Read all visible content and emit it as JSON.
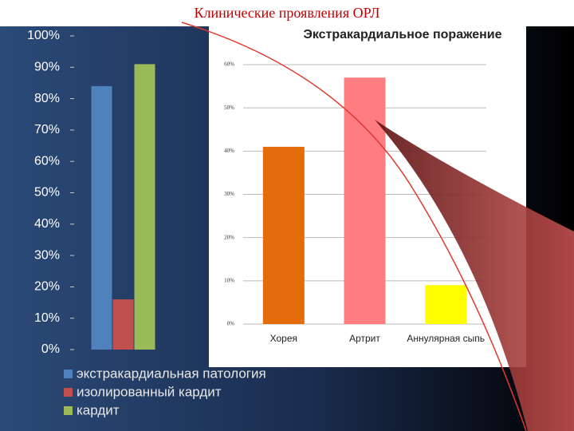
{
  "title": "Клинические проявления ОРЛ",
  "chart_data": [
    {
      "type": "bar",
      "categories": [
        null
      ],
      "series": [
        {
          "name": "экстракардиальная патология",
          "color": "#4f81bd",
          "values": [
            84
          ]
        },
        {
          "name": "изолированный кардит",
          "color": "#c0504d",
          "values": [
            16
          ]
        },
        {
          "name": "кардит",
          "color": "#9bbb59",
          "values": [
            91
          ]
        }
      ],
      "ylim": [
        0,
        100
      ],
      "yticks": [
        {
          "value": 0,
          "label": "0%"
        },
        {
          "value": 10,
          "label": "10%"
        },
        {
          "value": 20,
          "label": "20%"
        },
        {
          "value": 30,
          "label": "30%"
        },
        {
          "value": 40,
          "label": "40%"
        },
        {
          "value": 50,
          "label": "50%"
        },
        {
          "value": 60,
          "label": "60%"
        },
        {
          "value": 70,
          "label": "70%"
        },
        {
          "value": 80,
          "label": "80%"
        },
        {
          "value": 90,
          "label": "90%"
        },
        {
          "value": 100,
          "label": "100%"
        }
      ],
      "grid": false,
      "legend": "bottom"
    },
    {
      "type": "bar",
      "title": "Экстракардиальное поражение",
      "categories": [
        "Хорея",
        "Артрит",
        "Аннулярная сыпь"
      ],
      "values": [
        41,
        57,
        9
      ],
      "colors": [
        "#e46c0a",
        "#ff7c80",
        "#ffff00"
      ],
      "ylim": [
        0,
        60
      ],
      "yticks": [
        {
          "value": 0,
          "label": "0%"
        },
        {
          "value": 10,
          "label": "10%"
        },
        {
          "value": 20,
          "label": "20%"
        },
        {
          "value": 30,
          "label": "30%"
        },
        {
          "value": 40,
          "label": "40%"
        },
        {
          "value": 50,
          "label": "50%"
        },
        {
          "value": 60,
          "label": "60%"
        }
      ],
      "grid": true
    }
  ]
}
